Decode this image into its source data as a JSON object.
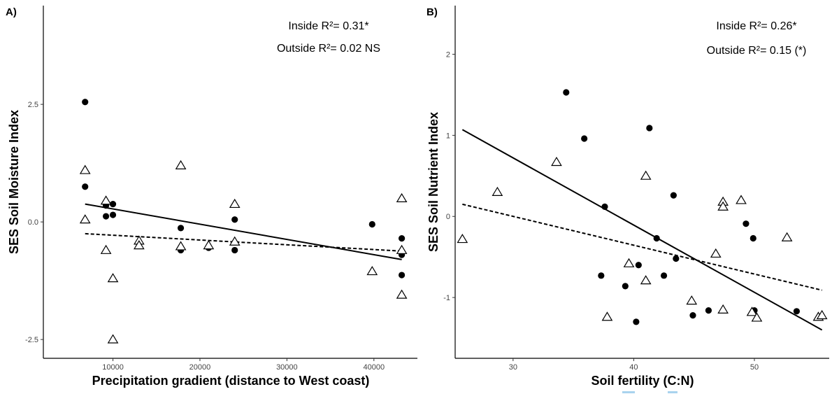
{
  "chart_data": [
    {
      "type": "scatter",
      "panel": "A)",
      "xlabel": "Precipitation gradient (distance to West coast)",
      "ylabel": "SES Soil Moisture Index",
      "xlim": [
        2000,
        45000
      ],
      "ylim": [
        -2.9,
        4.6
      ],
      "xticks": [
        10000,
        20000,
        30000,
        40000
      ],
      "yticks": [
        -2.5,
        0.0,
        2.5
      ],
      "ytick_labels": [
        "-2.5",
        "0.0",
        "2.5"
      ],
      "annotations": [
        "Inside R²= 0.31*",
        "Outside R²= 0.02 NS"
      ],
      "series": [
        {
          "marker": "circle-filled",
          "points": [
            [
              6800,
              2.55
            ],
            [
              6800,
              0.75
            ],
            [
              9200,
              0.35
            ],
            [
              9200,
              0.12
            ],
            [
              10000,
              0.38
            ],
            [
              10000,
              0.15
            ],
            [
              17800,
              -0.13
            ],
            [
              17800,
              -0.6
            ],
            [
              21000,
              -0.55
            ],
            [
              24000,
              0.05
            ],
            [
              24000,
              -0.6
            ],
            [
              39800,
              -0.05
            ],
            [
              43200,
              -0.35
            ],
            [
              43200,
              -0.7
            ],
            [
              43200,
              -1.13
            ]
          ]
        },
        {
          "marker": "triangle-open",
          "points": [
            [
              6800,
              1.1
            ],
            [
              6800,
              0.05
            ],
            [
              9200,
              0.45
            ],
            [
              9200,
              -0.6
            ],
            [
              10000,
              -1.2
            ],
            [
              10000,
              -2.5
            ],
            [
              13000,
              -0.4
            ],
            [
              13000,
              -0.5
            ],
            [
              17800,
              1.2
            ],
            [
              17800,
              -0.52
            ],
            [
              21000,
              -0.5
            ],
            [
              24000,
              0.38
            ],
            [
              24000,
              -0.42
            ],
            [
              39800,
              -1.05
            ],
            [
              43200,
              0.5
            ],
            [
              43200,
              -0.6
            ],
            [
              43200,
              -1.55
            ]
          ]
        }
      ],
      "fits": [
        {
          "style": "solid",
          "x": [
            6800,
            43200
          ],
          "y": [
            0.38,
            -0.8
          ]
        },
        {
          "style": "dashed",
          "x": [
            6800,
            43200
          ],
          "y": [
            -0.25,
            -0.62
          ]
        }
      ]
    },
    {
      "type": "scatter",
      "panel": "B)",
      "xlabel": "Soil fertility (C:N)",
      "ylabel": "SES Soil Nutrient Index",
      "xlim": [
        25.2,
        56.2
      ],
      "ylim": [
        -1.75,
        2.6
      ],
      "xticks": [
        30,
        40,
        50
      ],
      "yticks": [
        -1,
        0,
        1,
        2
      ],
      "ytick_labels": [
        "-1",
        "0",
        "1",
        "2"
      ],
      "annotations": [
        "Inside R²= 0.26*",
        "Outside R²= 0.15 (*)"
      ],
      "series": [
        {
          "marker": "circle-filled",
          "points": [
            [
              34.4,
              1.53
            ],
            [
              35.9,
              0.96
            ],
            [
              37.6,
              0.12
            ],
            [
              37.3,
              -0.73
            ],
            [
              39.3,
              -0.86
            ],
            [
              40.2,
              -1.3
            ],
            [
              40.4,
              -0.6
            ],
            [
              41.3,
              1.09
            ],
            [
              41.9,
              -0.27
            ],
            [
              42.5,
              -0.73
            ],
            [
              43.3,
              0.26
            ],
            [
              43.5,
              -0.52
            ],
            [
              44.9,
              -1.22
            ],
            [
              46.2,
              -1.16
            ],
            [
              49.3,
              -0.09
            ],
            [
              49.9,
              -0.27
            ],
            [
              50.0,
              -1.16
            ],
            [
              53.5,
              -1.17
            ]
          ]
        },
        {
          "marker": "triangle-open",
          "points": [
            [
              25.8,
              -0.28
            ],
            [
              28.7,
              0.3
            ],
            [
              33.6,
              0.67
            ],
            [
              37.8,
              -1.24
            ],
            [
              39.6,
              -0.58
            ],
            [
              41.0,
              0.5
            ],
            [
              41.0,
              -0.79
            ],
            [
              44.8,
              -1.04
            ],
            [
              46.8,
              -0.46
            ],
            [
              47.4,
              0.18
            ],
            [
              47.4,
              0.12
            ],
            [
              47.4,
              -1.15
            ],
            [
              48.9,
              0.2
            ],
            [
              49.8,
              -1.18
            ],
            [
              50.2,
              -1.25
            ],
            [
              52.7,
              -0.26
            ],
            [
              55.3,
              -1.24
            ],
            [
              55.6,
              -1.22
            ]
          ]
        }
      ],
      "fits": [
        {
          "style": "solid",
          "x": [
            25.8,
            55.6
          ],
          "y": [
            1.07,
            -1.4
          ]
        },
        {
          "style": "dashed",
          "x": [
            25.8,
            55.6
          ],
          "y": [
            0.15,
            -0.91
          ]
        }
      ]
    }
  ]
}
